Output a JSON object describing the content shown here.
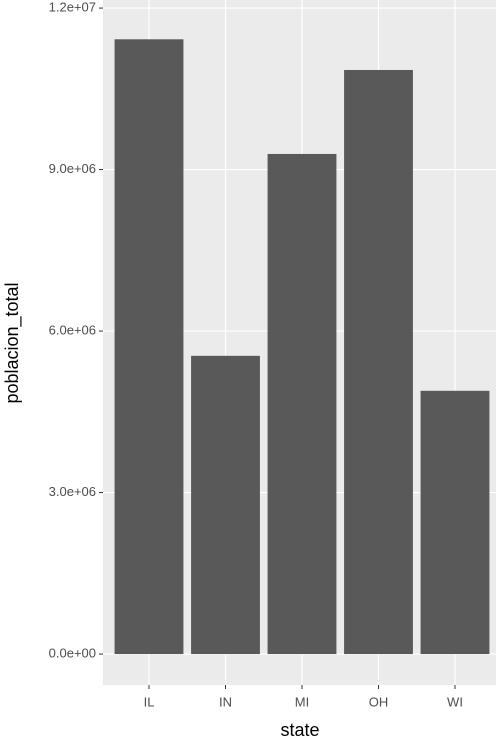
{
  "chart_data": {
    "type": "bar",
    "x_label": "state",
    "y_label": "poblacion_total",
    "categories": [
      "IL",
      "IN",
      "MI",
      "OH",
      "WI"
    ],
    "values": [
      11420000,
      5540000,
      9290000,
      10850000,
      4890000
    ],
    "color": "#595959",
    "ylim": [
      -575000,
      12150000
    ],
    "yticks": [
      {
        "value": 0,
        "label": "0.0e+00"
      },
      {
        "value": 3000000,
        "label": "3.0e+06"
      },
      {
        "value": 6000000,
        "label": "6.0e+06"
      },
      {
        "value": 9000000,
        "label": "9.0e+06"
      },
      {
        "value": 12000000,
        "label": "1.2e+07"
      }
    ],
    "grid": true
  }
}
